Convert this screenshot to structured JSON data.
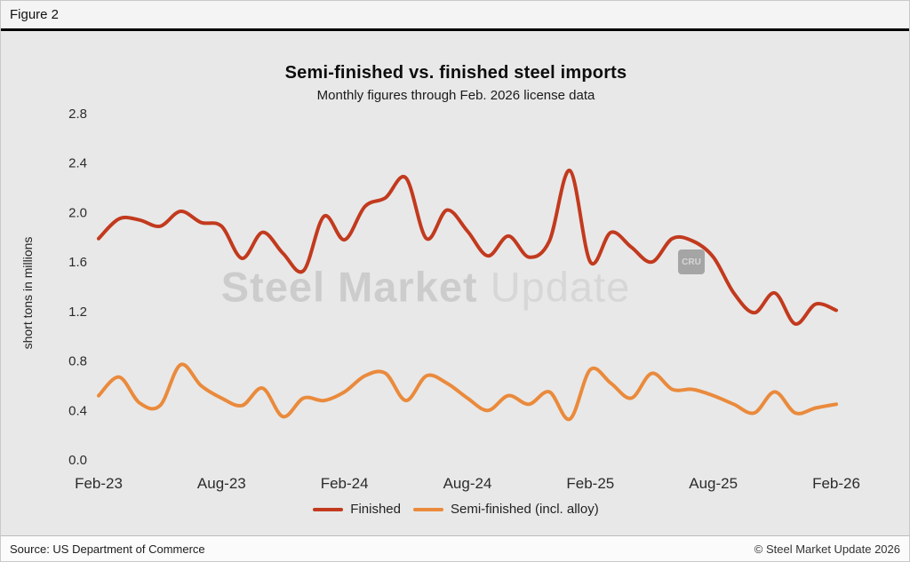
{
  "figure_label": "Figure 2",
  "chart_data": {
    "type": "line",
    "title": "Semi-finished vs. finished steel imports",
    "subtitle": "Monthly figures through Feb. 2026 license data",
    "ylabel": "short tons in millions",
    "ylim": [
      0,
      2.8
    ],
    "yticks": [
      0.0,
      0.4,
      0.8,
      1.2,
      1.6,
      2.0,
      2.4,
      2.8
    ],
    "ytick_labels": [
      "0.0",
      "0.4",
      "0.8",
      "1.2",
      "1.6",
      "2.0",
      "2.4",
      "2.8"
    ],
    "xtick_labels": [
      "Feb-23",
      "Aug-23",
      "Feb-24",
      "Aug-24",
      "Feb-25",
      "Aug-25",
      "Feb-26"
    ],
    "xtick_positions": [
      0,
      6,
      12,
      18,
      24,
      30,
      36
    ],
    "x_unit": "month",
    "grid": false,
    "legend_position": "bottom",
    "series": [
      {
        "name": "Finished",
        "color": "#c23a1e",
        "values": [
          1.79,
          1.95,
          1.94,
          1.89,
          2.01,
          1.92,
          1.89,
          1.63,
          1.84,
          1.67,
          1.53,
          1.97,
          1.78,
          2.05,
          2.12,
          2.28,
          1.79,
          2.02,
          1.85,
          1.65,
          1.81,
          1.64,
          1.77,
          2.34,
          1.6,
          1.84,
          1.72,
          1.6,
          1.79,
          1.77,
          1.64,
          1.35,
          1.19,
          1.35,
          1.1,
          1.26,
          1.21
        ]
      },
      {
        "name": "Semi-finished (incl. alloy)",
        "color": "#ea8a3c",
        "values": [
          0.52,
          0.67,
          0.46,
          0.44,
          0.77,
          0.6,
          0.5,
          0.44,
          0.58,
          0.35,
          0.5,
          0.48,
          0.55,
          0.68,
          0.7,
          0.48,
          0.68,
          0.62,
          0.5,
          0.4,
          0.52,
          0.45,
          0.55,
          0.33,
          0.73,
          0.62,
          0.5,
          0.7,
          0.57,
          0.57,
          0.52,
          0.45,
          0.38,
          0.55,
          0.38,
          0.42,
          0.45
        ]
      }
    ]
  },
  "watermark": {
    "text_primary": "Steel Market",
    "text_secondary": " Update",
    "badge": "CRU"
  },
  "footer": {
    "source": "Source: US Department of Commerce",
    "copyright": "© Steel Market Update 2026"
  }
}
